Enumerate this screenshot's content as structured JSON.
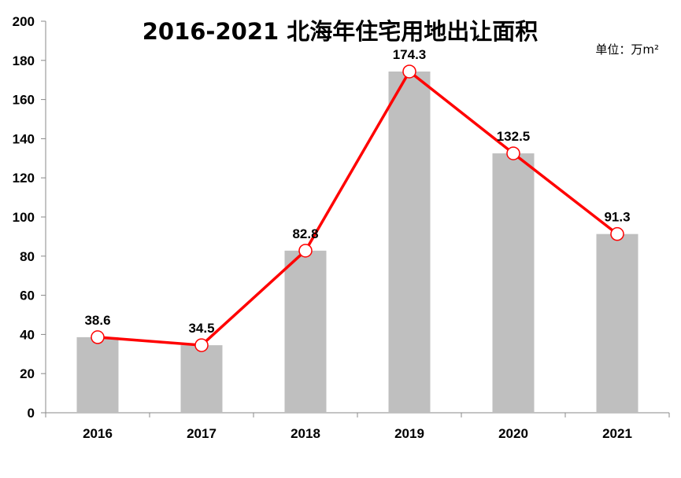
{
  "chart_data": {
    "type": "bar",
    "title": "2016-2021 北海年住宅用地出让面积",
    "unit": "单位：万m²",
    "categories": [
      "2016",
      "2017",
      "2018",
      "2019",
      "2020",
      "2021"
    ],
    "values": [
      38.6,
      34.5,
      82.8,
      174.3,
      132.5,
      91.3
    ],
    "ylim": [
      0,
      200
    ],
    "yticks": [
      0,
      20,
      40,
      60,
      80,
      100,
      120,
      140,
      160,
      180,
      200
    ],
    "bar_color": "#bfbfbf",
    "line_color": "#ff0000",
    "marker_fill": "#ffffff",
    "overlay": "line",
    "grid": false,
    "legend": false
  }
}
